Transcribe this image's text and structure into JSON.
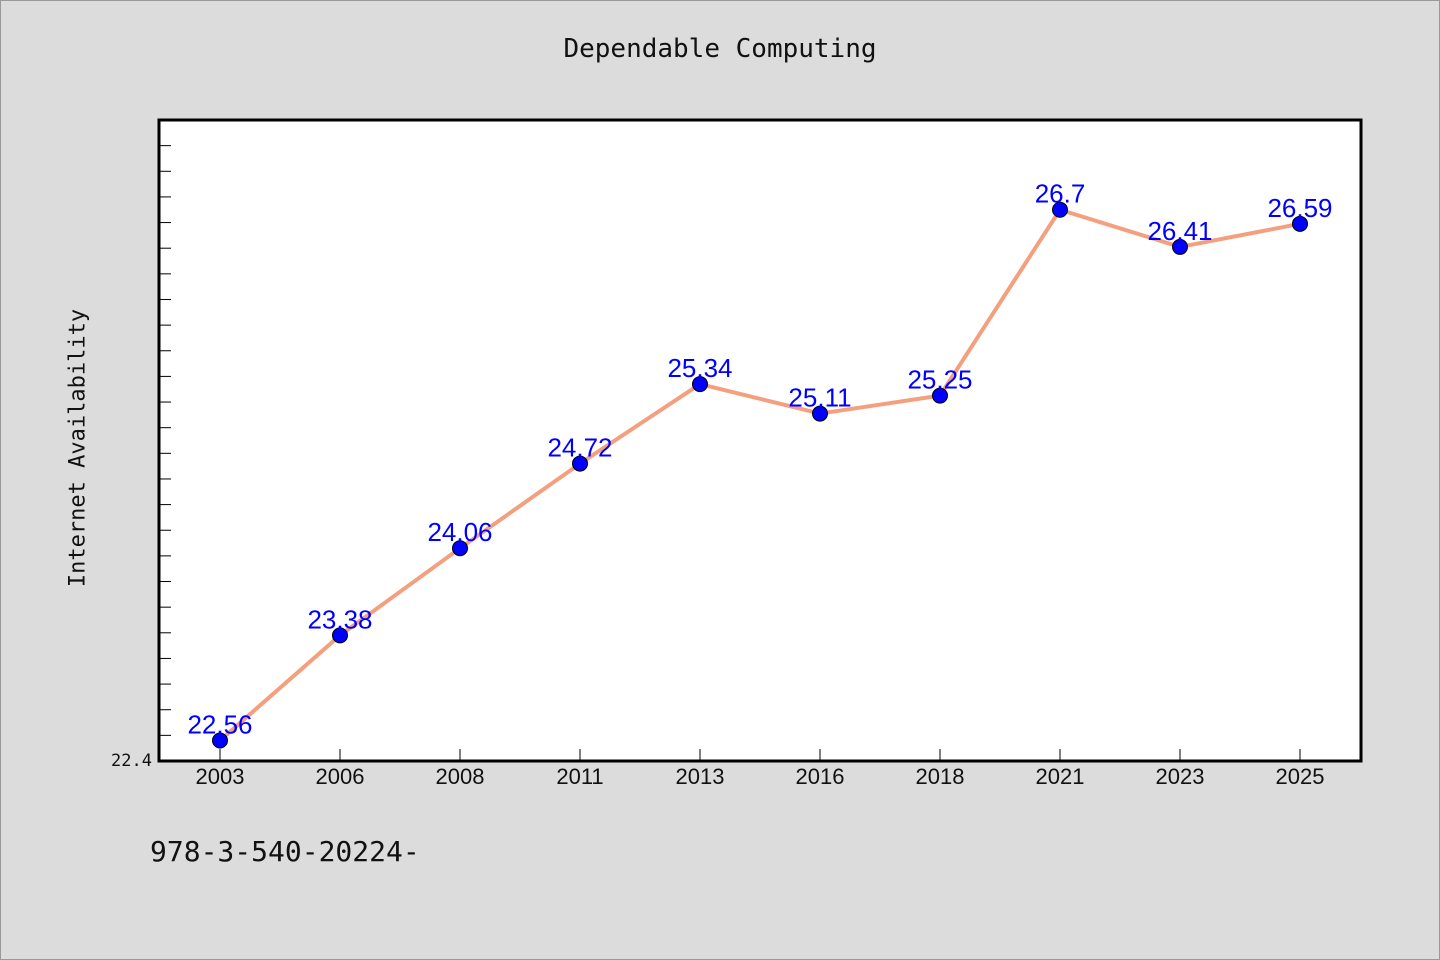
{
  "chart_title": "Dependable Computing",
  "footer_text": "978-3-540-20224-",
  "chart_data": {
    "type": "line",
    "title": "Dependable Computing",
    "xlabel": "",
    "ylabel": "Internet Availability",
    "categories": [
      "2003",
      "2006",
      "2008",
      "2011",
      "2013",
      "2016",
      "2018",
      "2021",
      "2023",
      "2025"
    ],
    "values": [
      22.56,
      23.38,
      24.06,
      24.72,
      25.34,
      25.11,
      25.25,
      26.7,
      26.41,
      26.59
    ],
    "data_labels": [
      "22.56",
      "23.38",
      "24.06",
      "24.72",
      "25.34",
      "25.11",
      "25.25",
      "26.7",
      "26.41",
      "26.59"
    ],
    "y_min_label": "22.4",
    "ylim": [
      22.4,
      27.4
    ],
    "grid": false,
    "line_color": "#f4a07f",
    "marker_color": "#0000ff",
    "label_color": "#0000ff"
  }
}
